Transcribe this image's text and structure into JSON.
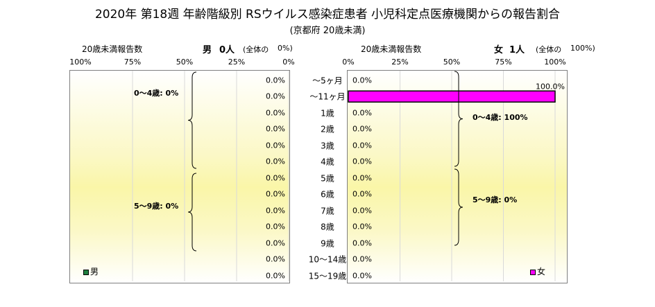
{
  "title": "2020年 第18週 年齢階級別 RSウイルス感染症患者 小児科定点医療機関からの報告割合",
  "subtitle": "(京都府 20歳未満)",
  "colors": {
    "male": "#1f7f3f",
    "female": "#ff00ff",
    "bar_border": "#000000",
    "grid": "#d9d9d9"
  },
  "left_panel": {
    "header_label": "20歳未満報告数",
    "sex_label": "男",
    "count_label": "0人",
    "share_label": "(全体の",
    "share_value": "0%)",
    "ticks": [
      "100%",
      "75%",
      "50%",
      "25%",
      "0%"
    ],
    "legend": "男"
  },
  "right_panel": {
    "header_label": "20歳未満報告数",
    "sex_label": "女",
    "count_label": "1人",
    "share_label": "(全体の",
    "share_value": "100%)",
    "ticks": [
      "0%",
      "25%",
      "50%",
      "75%",
      "100%"
    ],
    "legend": "女"
  },
  "brace_groups": {
    "left": [
      {
        "label": "0〜4歳: 0%"
      },
      {
        "label": "5〜9歳: 0%"
      }
    ],
    "right": [
      {
        "label": "0〜4歳: 100%"
      },
      {
        "label": "5〜9歳: 0%"
      }
    ]
  },
  "chart_data": {
    "type": "bar",
    "orientation": "horizontal",
    "title": "2020年 第18週 年齢階級別 RSウイルス感染症患者 小児科定点医療機関からの報告割合",
    "subtitle": "(京都府 20歳未満)",
    "categories": [
      "〜5ヶ月",
      "〜11ヶ月",
      "1歳",
      "2歳",
      "3歳",
      "4歳",
      "5歳",
      "6歳",
      "7歳",
      "8歳",
      "9歳",
      "10〜14歳",
      "15〜19歳"
    ],
    "series": [
      {
        "name": "男",
        "values": [
          0,
          0,
          0,
          0,
          0,
          0,
          0,
          0,
          0,
          0,
          0,
          0,
          0
        ],
        "labels": [
          "0.0%",
          "0.0%",
          "0.0%",
          "0.0%",
          "0.0%",
          "0.0%",
          "0.0%",
          "0.0%",
          "0.0%",
          "0.0%",
          "0.0%",
          "0.0%",
          "0.0%"
        ]
      },
      {
        "name": "女",
        "values": [
          0,
          100,
          0,
          0,
          0,
          0,
          0,
          0,
          0,
          0,
          0,
          0,
          0
        ],
        "labels": [
          "0.0%",
          "100.0%",
          "0.0%",
          "0.0%",
          "0.0%",
          "0.0%",
          "0.0%",
          "0.0%",
          "0.0%",
          "0.0%",
          "0.0%",
          "0.0%",
          "0.0%"
        ]
      }
    ],
    "xlim": [
      0,
      100
    ],
    "xunit": "%",
    "grid": true,
    "legend": "bottom"
  }
}
